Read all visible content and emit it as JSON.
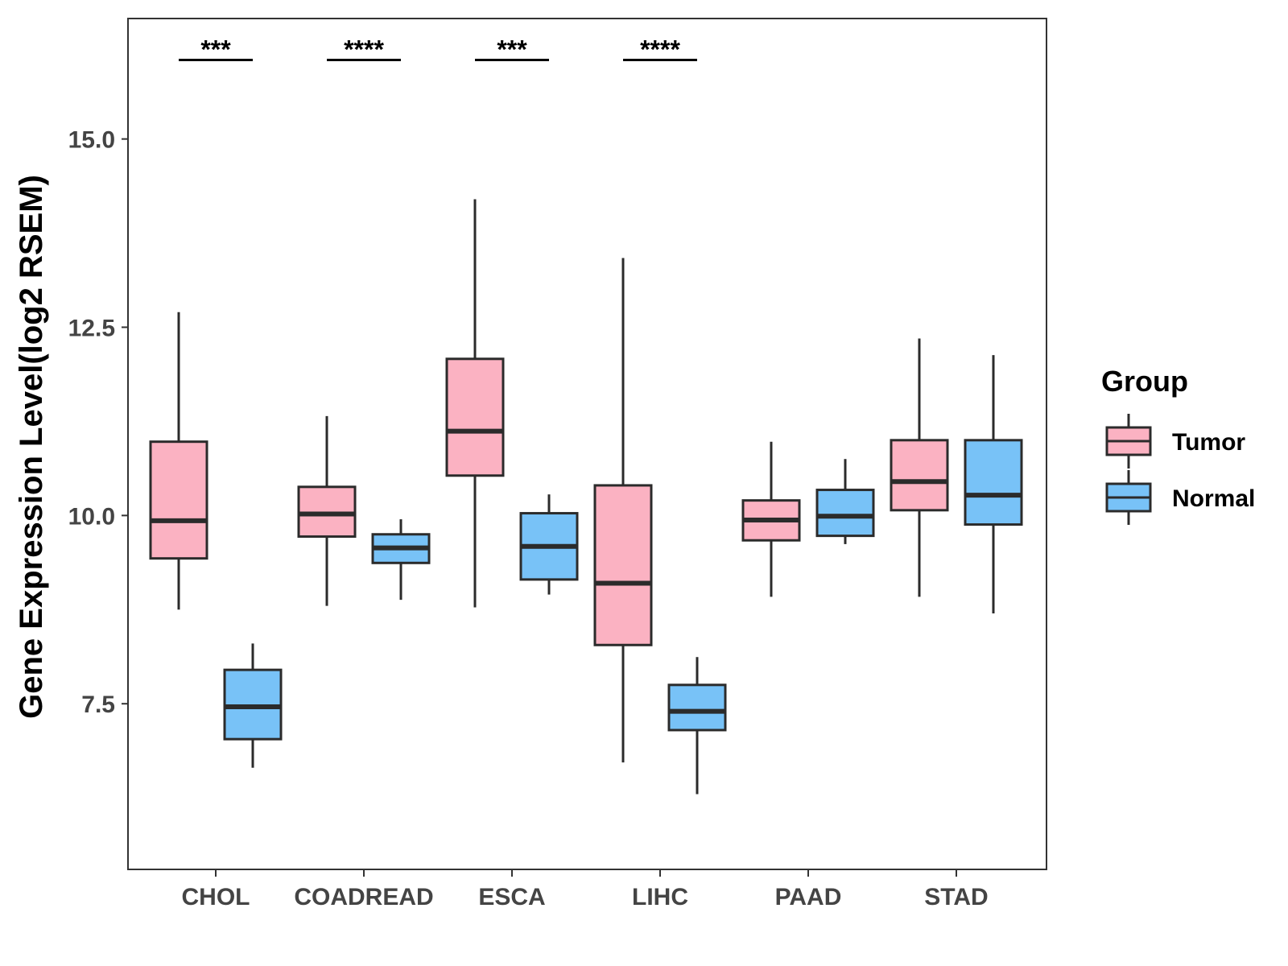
{
  "chart_data": {
    "type": "boxplot",
    "title": "",
    "xlabel": "",
    "ylabel": "Gene Expression Level(log2 RSEM)",
    "ylim": [
      5.3,
      16.6
    ],
    "yticks": [
      7.5,
      10.0,
      12.5,
      15.0
    ],
    "ytick_labels": [
      "7.5",
      "10.0",
      "12.5",
      "15.0"
    ],
    "categories": [
      "CHOL",
      "COADREAD",
      "ESCA",
      "LIHC",
      "PAAD",
      "STAD"
    ],
    "legend": {
      "title": "Group",
      "position": "right",
      "entries": [
        {
          "name": "Tumor",
          "color": "#FBB2C2"
        },
        {
          "name": "Normal",
          "color": "#78C2F7"
        }
      ]
    },
    "series": [
      {
        "name": "Tumor",
        "color": "#FBB2C2",
        "boxes": [
          {
            "category": "CHOL",
            "min": 8.75,
            "q1": 9.43,
            "median": 9.93,
            "q3": 10.98,
            "max": 12.7
          },
          {
            "category": "COADREAD",
            "min": 8.8,
            "q1": 9.72,
            "median": 10.02,
            "q3": 10.38,
            "max": 11.32
          },
          {
            "category": "ESCA",
            "min": 8.78,
            "q1": 10.53,
            "median": 11.12,
            "q3": 12.08,
            "max": 14.2
          },
          {
            "category": "LIHC",
            "min": 6.72,
            "q1": 8.28,
            "median": 9.1,
            "q3": 10.4,
            "max": 13.42
          },
          {
            "category": "PAAD",
            "min": 8.92,
            "q1": 9.67,
            "median": 9.94,
            "q3": 10.2,
            "max": 10.98
          },
          {
            "category": "STAD",
            "min": 8.92,
            "q1": 10.07,
            "median": 10.45,
            "q3": 11.0,
            "max": 12.35
          }
        ]
      },
      {
        "name": "Normal",
        "color": "#78C2F7",
        "boxes": [
          {
            "category": "CHOL",
            "min": 6.65,
            "q1": 7.03,
            "median": 7.46,
            "q3": 7.95,
            "max": 8.3
          },
          {
            "category": "COADREAD",
            "min": 8.88,
            "q1": 9.37,
            "median": 9.57,
            "q3": 9.75,
            "max": 9.95
          },
          {
            "category": "ESCA",
            "min": 8.95,
            "q1": 9.15,
            "median": 9.59,
            "q3": 10.03,
            "max": 10.28
          },
          {
            "category": "LIHC",
            "min": 6.3,
            "q1": 7.15,
            "median": 7.4,
            "q3": 7.75,
            "max": 8.12
          },
          {
            "category": "PAAD",
            "min": 9.62,
            "q1": 9.73,
            "median": 9.99,
            "q3": 10.34,
            "max": 10.75
          },
          {
            "category": "STAD",
            "min": 8.7,
            "q1": 9.88,
            "median": 10.27,
            "q3": 11.0,
            "max": 12.13
          }
        ]
      }
    ],
    "annotations": [
      {
        "category": "CHOL",
        "text": "***",
        "y": 16.05
      },
      {
        "category": "COADREAD",
        "text": "****",
        "y": 16.05
      },
      {
        "category": "ESCA",
        "text": "***",
        "y": 16.05
      },
      {
        "category": "LIHC",
        "text": "****",
        "y": 16.05
      }
    ]
  }
}
